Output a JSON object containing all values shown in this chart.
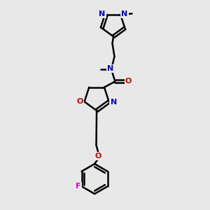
{
  "bg_color": "#e8e8e8",
  "bond_color": "#000000",
  "bond_width": 1.8,
  "atom_colors": {
    "N": "#0000cc",
    "O": "#cc0000",
    "F": "#cc00cc",
    "C": "#000000"
  },
  "font_size": 8.0,
  "fig_width": 3.0,
  "fig_height": 3.0
}
